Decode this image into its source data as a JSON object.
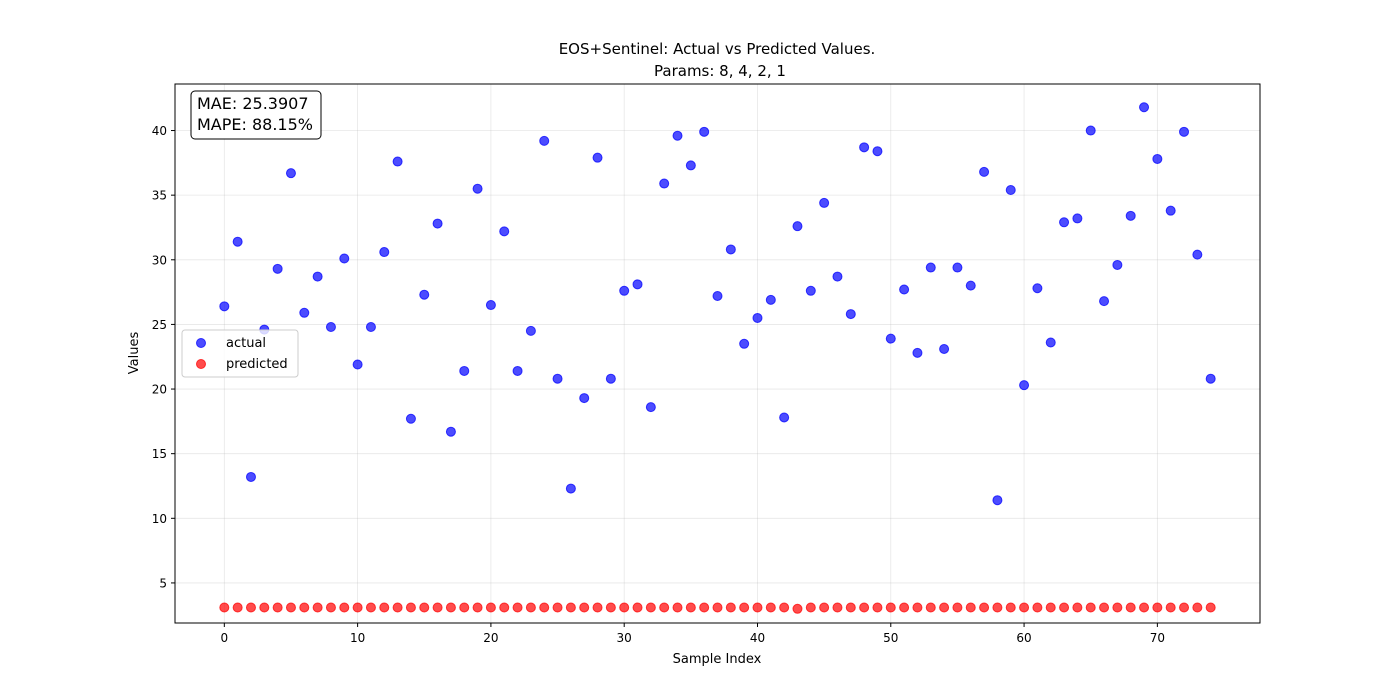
{
  "chart_data": {
    "type": "scatter",
    "title": "EOS+Sentinel: Actual vs Predicted Values.",
    "subtitle": "Params: 8, 4, 2, 1",
    "xlabel": "Sample Index",
    "ylabel": "Values",
    "xlim": [
      -3.7,
      77.7
    ],
    "ylim": [
      1.9,
      43.6
    ],
    "xticks": [
      "0",
      "10",
      "20",
      "30",
      "40",
      "50",
      "60",
      "70"
    ],
    "yticks": [
      "5",
      "10",
      "15",
      "20",
      "25",
      "30",
      "35",
      "40"
    ],
    "grid": true,
    "legend_position": "center-left",
    "annotation": {
      "mae": "MAE: 25.3907",
      "mape": "MAPE: 88.15%"
    },
    "series": [
      {
        "name": "actual",
        "color": "#0000ff",
        "x": [
          0,
          1,
          2,
          3,
          4,
          5,
          6,
          7,
          8,
          9,
          10,
          11,
          12,
          13,
          14,
          15,
          16,
          17,
          18,
          19,
          20,
          21,
          22,
          23,
          24,
          25,
          26,
          27,
          28,
          29,
          30,
          31,
          32,
          33,
          34,
          35,
          36,
          37,
          38,
          39,
          40,
          41,
          42,
          43,
          44,
          45,
          46,
          47,
          48,
          49,
          50,
          51,
          52,
          53,
          54,
          55,
          56,
          57,
          58,
          59,
          60,
          61,
          62,
          63,
          64,
          65,
          66,
          67,
          68,
          69,
          70,
          71,
          72,
          73,
          74
        ],
        "y": [
          26.4,
          31.4,
          13.2,
          24.6,
          29.3,
          36.7,
          25.9,
          28.7,
          24.8,
          30.1,
          21.9,
          24.8,
          30.6,
          37.6,
          17.7,
          27.3,
          32.8,
          16.7,
          21.4,
          35.5,
          26.5,
          32.2,
          21.4,
          24.5,
          39.2,
          20.8,
          12.3,
          19.3,
          37.9,
          20.8,
          27.6,
          28.1,
          18.6,
          35.9,
          39.6,
          37.3,
          39.9,
          27.2,
          30.8,
          23.5,
          25.5,
          26.9,
          17.8,
          32.6,
          27.6,
          34.4,
          28.7,
          25.8,
          38.7,
          38.4,
          23.9,
          27.7,
          22.8,
          29.4,
          23.1,
          29.4,
          28.0,
          36.8,
          11.4,
          35.4,
          20.3,
          27.8,
          23.6,
          32.9,
          33.2,
          40.0,
          26.8,
          29.6,
          33.4,
          41.8,
          37.8,
          33.8,
          39.9,
          30.4,
          20.8
        ]
      },
      {
        "name": "predicted",
        "color": "#ff0000",
        "x": [
          0,
          1,
          2,
          3,
          4,
          5,
          6,
          7,
          8,
          9,
          10,
          11,
          12,
          13,
          14,
          15,
          16,
          17,
          18,
          19,
          20,
          21,
          22,
          23,
          24,
          25,
          26,
          27,
          28,
          29,
          30,
          31,
          32,
          33,
          34,
          35,
          36,
          37,
          38,
          39,
          40,
          41,
          42,
          43,
          44,
          45,
          46,
          47,
          48,
          49,
          50,
          51,
          52,
          53,
          54,
          55,
          56,
          57,
          58,
          59,
          60,
          61,
          62,
          63,
          64,
          65,
          66,
          67,
          68,
          69,
          70,
          71,
          72,
          73,
          74
        ],
        "y": [
          3.1,
          3.1,
          3.1,
          3.1,
          3.1,
          3.1,
          3.1,
          3.1,
          3.1,
          3.1,
          3.1,
          3.1,
          3.1,
          3.1,
          3.1,
          3.1,
          3.1,
          3.1,
          3.1,
          3.1,
          3.1,
          3.1,
          3.1,
          3.1,
          3.1,
          3.1,
          3.1,
          3.1,
          3.1,
          3.1,
          3.1,
          3.1,
          3.1,
          3.1,
          3.1,
          3.1,
          3.1,
          3.1,
          3.1,
          3.1,
          3.1,
          3.1,
          3.1,
          3.0,
          3.1,
          3.1,
          3.1,
          3.1,
          3.1,
          3.1,
          3.1,
          3.1,
          3.1,
          3.1,
          3.1,
          3.1,
          3.1,
          3.1,
          3.1,
          3.1,
          3.1,
          3.1,
          3.1,
          3.1,
          3.1,
          3.1,
          3.1,
          3.1,
          3.1,
          3.1,
          3.1,
          3.1,
          3.1,
          3.1,
          3.1
        ]
      }
    ]
  }
}
